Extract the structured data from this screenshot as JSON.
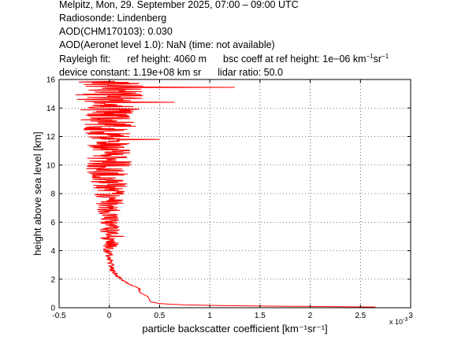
{
  "header": {
    "line1": "Melpitz, Mon, 29. September 2025, 07:00 – 09:00 UTC",
    "line2": "Radiosonde: Lindenberg",
    "line3": "AOD(CHM170103): 0.030",
    "line4": "AOD(Aeronet level 1.0): NaN   (time: not available)",
    "rayleigh_label": "Rayleigh fit:",
    "ref_height": "ref height: 4060 m",
    "bsc_prefix": "bsc coeff at ref height: 1e−06 km",
    "sup1": "−1",
    "sr": "sr",
    "sup2": "−1",
    "device_constant": "device constant: 1.19e+08 km sr",
    "lidar_ratio": "lidar ratio: 50.0"
  },
  "chart_data": {
    "type": "line",
    "xlabel": "particle backscatter coefficient [km⁻¹sr⁻¹]",
    "ylabel": "height above sea level [km]",
    "x_multiplier_label": "x 10",
    "x_multiplier_exp": "-3",
    "xlim": [
      -0.5,
      3.0
    ],
    "ylim": [
      0,
      16
    ],
    "xticks": [
      "-0.5",
      "0",
      "0.5",
      "1",
      "1.5",
      "2",
      "2.5",
      "3"
    ],
    "yticks": [
      "0",
      "2",
      "4",
      "6",
      "8",
      "10",
      "12",
      "14",
      "16"
    ],
    "grid": true,
    "series": [
      {
        "color": "#ff0000",
        "profile": [
          [
            0.05,
            2.65
          ],
          [
            0.1,
            1.8
          ],
          [
            0.15,
            1.1
          ],
          [
            0.2,
            0.75
          ],
          [
            0.25,
            0.6
          ],
          [
            0.3,
            0.5
          ],
          [
            0.4,
            0.42
          ],
          [
            0.5,
            0.4
          ],
          [
            0.6,
            0.4
          ],
          [
            0.7,
            0.39
          ],
          [
            0.8,
            0.38
          ],
          [
            0.9,
            0.35
          ],
          [
            1.0,
            0.32
          ],
          [
            1.1,
            0.3
          ],
          [
            1.2,
            0.3
          ],
          [
            1.35,
            0.3
          ],
          [
            1.5,
            0.25
          ],
          [
            1.65,
            0.2
          ],
          [
            1.8,
            0.16
          ],
          [
            1.95,
            0.13
          ],
          [
            2.05,
            0.11
          ],
          [
            2.3,
            0.06
          ],
          [
            2.6,
            0.03
          ],
          [
            3.0,
            0.02
          ],
          [
            3.5,
            0.0
          ],
          [
            4.0,
            -0.01
          ],
          [
            4.2,
            0.0
          ],
          [
            4.5,
            0.01
          ],
          [
            5.0,
            0.0
          ],
          [
            5.5,
            0.0
          ],
          [
            6.0,
            0.0
          ],
          [
            6.5,
            0.0
          ],
          [
            7.0,
            0.0
          ],
          [
            7.5,
            0.0
          ],
          [
            8.0,
            0.0
          ],
          [
            9.0,
            0.0
          ],
          [
            10.0,
            0.0
          ],
          [
            11.0,
            0.0
          ],
          [
            12.0,
            0.0
          ],
          [
            13.0,
            0.0
          ],
          [
            14.0,
            0.0
          ],
          [
            15.0,
            0.0
          ],
          [
            15.5,
            0.0
          ],
          [
            15.9,
            0.0
          ]
        ],
        "spread": [
          [
            0.05,
            0.0
          ],
          [
            0.5,
            0.0
          ],
          [
            1.0,
            0.005
          ],
          [
            1.5,
            0.01
          ],
          [
            2.0,
            0.02
          ],
          [
            2.2,
            0.02
          ],
          [
            2.5,
            0.03
          ],
          [
            3.0,
            0.03
          ],
          [
            4.0,
            0.05
          ],
          [
            4.2,
            0.08
          ],
          [
            5.0,
            0.1
          ],
          [
            6.0,
            0.1
          ],
          [
            7.0,
            0.14
          ],
          [
            8.0,
            0.15
          ],
          [
            9.0,
            0.2
          ],
          [
            10.0,
            0.25
          ],
          [
            11.0,
            0.22
          ],
          [
            12.0,
            0.22
          ],
          [
            13.0,
            0.3
          ],
          [
            14.0,
            0.3
          ],
          [
            15.0,
            0.35
          ],
          [
            15.9,
            0.35
          ]
        ],
        "spikes": [
          [
            15.45,
            1.25
          ],
          [
            14.4,
            0.65
          ],
          [
            11.8,
            0.5
          ],
          [
            5.0,
            0.15
          ]
        ]
      }
    ]
  }
}
